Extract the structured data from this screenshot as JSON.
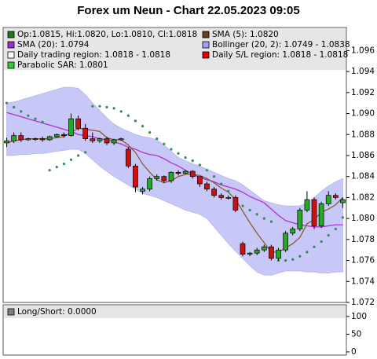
{
  "chart_data": [
    {
      "type": "candlestick",
      "title": "Forex um Neun - Chart 22.05.2023 09:05",
      "open": [
        1.0872,
        1.0874,
        1.0879,
        1.0875,
        1.0876,
        1.0876,
        1.0875,
        1.0878,
        1.088,
        1.0879,
        1.0895,
        1.0886,
        1.0876,
        1.0874,
        1.0876,
        1.0872,
        1.0875,
        1.0866,
        1.085,
        1.0826,
        1.0828,
        1.0838,
        1.084,
        1.0836,
        1.0844,
        1.0843,
        1.0845,
        1.084,
        1.0833,
        1.0828,
        1.0822,
        1.082,
        1.082,
        1.0776,
        1.0766,
        1.0767,
        1.077,
        1.0773,
        1.0762,
        1.077,
        1.0786,
        1.079,
        1.0808,
        1.0818,
        1.0793,
        1.0814,
        1.0822,
        1.0815
      ],
      "high": [
        1.0877,
        1.0882,
        1.0882,
        1.0877,
        1.0877,
        1.0878,
        1.0879,
        1.0881,
        1.0882,
        1.09,
        1.0898,
        1.089,
        1.0882,
        1.0877,
        1.0878,
        1.0876,
        1.0877,
        1.0868,
        1.0852,
        1.083,
        1.084,
        1.0842,
        1.0841,
        1.0845,
        1.0846,
        1.0846,
        1.0846,
        1.084,
        1.0835,
        1.083,
        1.0824,
        1.0822,
        1.0822,
        1.0778,
        1.0768,
        1.0772,
        1.0775,
        1.0775,
        1.0772,
        1.0788,
        1.0792,
        1.081,
        1.0826,
        1.082,
        1.0816,
        1.0826,
        1.0824,
        1.082
      ],
      "low": [
        1.0868,
        1.0872,
        1.0873,
        1.0874,
        1.0874,
        1.0873,
        1.0874,
        1.0877,
        1.0877,
        1.0878,
        1.0884,
        1.0874,
        1.0872,
        1.0872,
        1.087,
        1.087,
        1.0874,
        1.0848,
        1.0825,
        1.0823,
        1.0826,
        1.0836,
        1.0834,
        1.0834,
        1.0841,
        1.0842,
        1.0838,
        1.083,
        1.0826,
        1.082,
        1.0818,
        1.0818,
        1.0806,
        1.0764,
        1.0764,
        1.0765,
        1.0768,
        1.076,
        1.076,
        1.0768,
        1.0784,
        1.0788,
        1.0806,
        1.079,
        1.0791,
        1.0812,
        1.0818,
        1.081
      ],
      "close": [
        1.0874,
        1.0879,
        1.0875,
        1.0876,
        1.0876,
        1.0875,
        1.0878,
        1.088,
        1.0879,
        1.0895,
        1.0886,
        1.0876,
        1.0874,
        1.0876,
        1.0872,
        1.0875,
        1.0876,
        1.085,
        1.083,
        1.0828,
        1.0838,
        1.084,
        1.0836,
        1.0844,
        1.0843,
        1.0845,
        1.084,
        1.0833,
        1.0828,
        1.0822,
        1.082,
        1.082,
        1.0808,
        1.0766,
        1.0767,
        1.077,
        1.0773,
        1.0762,
        1.077,
        1.0786,
        1.079,
        1.0808,
        1.0818,
        1.0793,
        1.0814,
        1.0822,
        1.082,
        1.0818
      ],
      "up_color": "#22aa22",
      "down_color": "#cc1111",
      "overlays": [
        {
          "kind": "band",
          "color": "#c8c8f8",
          "upper": [
            1.091,
            1.0911,
            1.0913,
            1.0915,
            1.0917,
            1.0919,
            1.0921,
            1.0923,
            1.0925,
            1.0925,
            1.0924,
            1.0918,
            1.091,
            1.0903,
            1.0896,
            1.089,
            1.0886,
            1.0883,
            1.088,
            1.0878,
            1.0877,
            1.0875,
            1.087,
            1.0864,
            1.0858,
            1.0855,
            1.0852,
            1.085,
            1.0847,
            1.0844,
            1.0841,
            1.0838,
            1.0836,
            1.0832,
            1.0827,
            1.0822,
            1.0817,
            1.0815,
            1.0813,
            1.0812,
            1.0812,
            1.0812,
            1.0815,
            1.082,
            1.0826,
            1.0831,
            1.0835,
            1.0838
          ],
          "lower": [
            1.086,
            1.086,
            1.0861,
            1.0861,
            1.0862,
            1.0862,
            1.0863,
            1.0864,
            1.0865,
            1.0866,
            1.0866,
            1.0862,
            1.0856,
            1.085,
            1.0845,
            1.084,
            1.0836,
            1.0832,
            1.0828,
            1.0824,
            1.0822,
            1.082,
            1.0817,
            1.0814,
            1.0811,
            1.0808,
            1.0806,
            1.0804,
            1.08,
            1.0792,
            1.0784,
            1.0776,
            1.0769,
            1.0762,
            1.0755,
            1.0749,
            1.0746,
            1.0746,
            1.0748,
            1.075,
            1.075,
            1.075,
            1.0749,
            1.0749,
            1.0748,
            1.0748,
            1.0749,
            1.0749
          ]
        },
        {
          "kind": "line",
          "color": "#b030d0",
          "values": [
            1.0901,
            1.0899,
            1.0897,
            1.0895,
            1.0893,
            1.0891,
            1.0889,
            1.0887,
            1.0885,
            1.0883,
            1.088,
            1.0879,
            1.0878,
            1.0876,
            1.0875,
            1.0873,
            1.0871,
            1.0868,
            1.0866,
            1.0863,
            1.0861,
            1.086,
            1.0857,
            1.0853,
            1.085,
            1.0846,
            1.0842,
            1.0839,
            1.0837,
            1.0835,
            1.0832,
            1.083,
            1.0828,
            1.0825,
            1.0821,
            1.0818,
            1.0815,
            1.0809,
            1.0803,
            1.0798,
            1.0796,
            1.0794,
            1.0793,
            1.0792,
            1.0792,
            1.0793,
            1.0794,
            1.0794
          ]
        },
        {
          "kind": "line",
          "color": "#8b5a2b",
          "values": [
            1.0872,
            1.0874,
            1.0875,
            1.0876,
            1.0876,
            1.0876,
            1.0876,
            1.0877,
            1.0878,
            1.0882,
            1.0886,
            1.0885,
            1.0884,
            1.0883,
            1.0877,
            1.0875,
            1.0875,
            1.087,
            1.0863,
            1.0852,
            1.0844,
            1.0837,
            1.0834,
            1.0836,
            1.084,
            1.0842,
            1.0842,
            1.0841,
            1.0838,
            1.0834,
            1.0829,
            1.0825,
            1.0818,
            1.0807,
            1.0796,
            1.0786,
            1.0777,
            1.0768,
            1.0768,
            1.0772,
            1.0776,
            1.0782,
            1.0795,
            1.0799,
            1.0806,
            1.0809,
            1.0813,
            1.082
          ]
        },
        {
          "kind": "dots",
          "color": "#2e8b57",
          "values": [
            1.091,
            1.0906,
            1.0902,
            1.0898,
            1.0895,
            1.0892,
            1.0846,
            1.0849,
            1.0852,
            1.0856,
            1.086,
            1.0863,
            1.0907,
            1.0907,
            1.0906,
            1.0905,
            1.0902,
            1.0898,
            1.0893,
            1.0888,
            1.0882,
            1.0876,
            1.0871,
            1.0866,
            1.0862,
            1.0858,
            1.0855,
            1.0851,
            1.0846,
            1.084,
            1.0833,
            1.0826,
            1.0818,
            1.0812,
            1.0808,
            1.0804,
            1.08,
            1.0797,
            1.076,
            1.076,
            1.0761,
            1.0764,
            1.0768,
            1.0773,
            1.0778,
            1.0784,
            1.079,
            1.0801
          ]
        }
      ],
      "legend": [
        {
          "label": "Op:1.0815, Hi:1.0820, Lo:1.0810, Cl:1.0818",
          "color": "#1f7a1f"
        },
        {
          "label": "SMA (5): 1.0820",
          "color": "#6b3a1f"
        },
        {
          "label": "SMA (20): 1.0794",
          "color": "#9932cc"
        },
        {
          "label": "Bollinger (20, 2): 1.0749 - 1.0838",
          "color": "#a0a0f0"
        },
        {
          "label": "Daily trading region: 1.0818 - 1.0818",
          "color": "#ffffff"
        },
        {
          "label": "Daily S/L region: 1.0818 - 1.0818",
          "color": "#dd0000"
        },
        {
          "label": "Parabolic SAR: 1.0801",
          "color": "#33cc33"
        }
      ],
      "ylim": [
        1.072,
        1.0982
      ],
      "yticks": [
        1.072,
        1.074,
        1.076,
        1.078,
        {
          "value": 1.08,
          "label": "1.080"
        },
        1.082,
        1.084,
        1.086,
        1.088,
        {
          "value": 1.09,
          "label": "1.090"
        },
        1.092,
        1.094,
        1.096
      ]
    },
    {
      "type": "indicator",
      "legend": [
        {
          "label": "Long/Short: 0.0000",
          "color": "#808080"
        }
      ],
      "ylim": [
        -9,
        133
      ],
      "yticks": [
        0,
        50,
        100
      ]
    }
  ]
}
